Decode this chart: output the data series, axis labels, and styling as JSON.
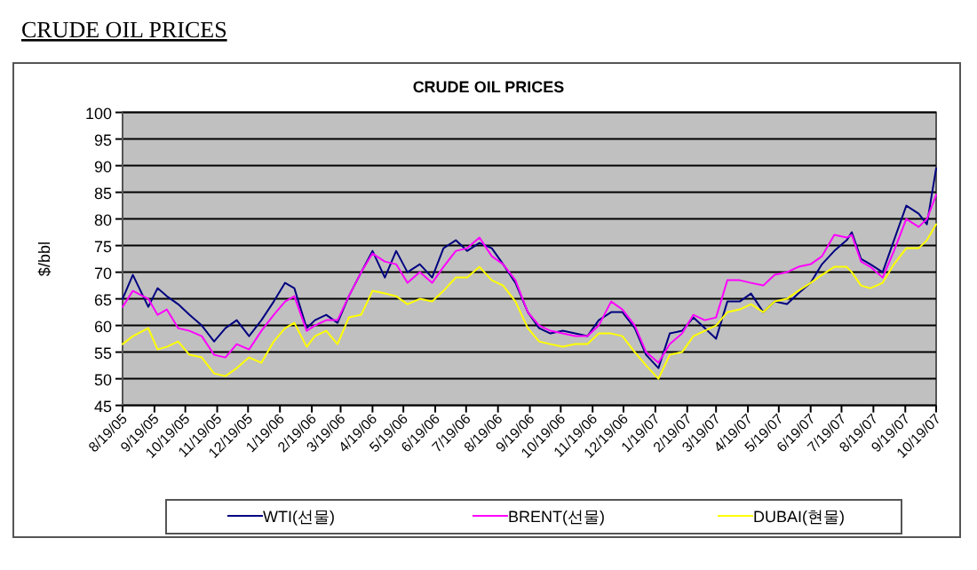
{
  "chart_data": {
    "type": "line",
    "title": "CRUDE OIL PRICES",
    "ylabel": "$/bbl",
    "annotations": [
      "CRUDE OIL PRICES"
    ],
    "x": [
      "2005-08-19",
      "2005-08-29",
      "2005-09-13",
      "2005-09-22",
      "2005-10-01",
      "2005-10-12",
      "2005-10-23",
      "2005-11-04",
      "2005-11-16",
      "2005-11-27",
      "2005-12-08",
      "2005-12-20",
      "2006-01-01",
      "2006-01-13",
      "2006-01-24",
      "2006-02-02",
      "2006-02-14",
      "2006-02-22",
      "2006-03-05",
      "2006-03-16",
      "2006-03-27",
      "2006-04-08",
      "2006-04-19",
      "2006-05-01",
      "2006-05-12",
      "2006-05-23",
      "2006-06-04",
      "2006-06-16",
      "2006-06-27",
      "2006-07-09",
      "2006-07-20",
      "2006-08-01",
      "2006-08-13",
      "2006-08-24",
      "2006-09-05",
      "2006-09-17",
      "2006-09-28",
      "2006-10-09",
      "2006-10-21",
      "2006-11-02",
      "2006-11-14",
      "2006-11-25",
      "2006-12-07",
      "2006-12-18",
      "2006-12-30",
      "2007-01-10",
      "2007-01-22",
      "2007-02-02",
      "2007-02-14",
      "2007-02-25",
      "2007-03-08",
      "2007-03-19",
      "2007-03-30",
      "2007-04-11",
      "2007-04-22",
      "2007-05-04",
      "2007-05-15",
      "2007-05-27",
      "2007-06-07",
      "2007-06-19",
      "2007-06-30",
      "2007-07-12",
      "2007-07-24",
      "2007-07-29",
      "2007-08-07",
      "2007-08-16",
      "2007-08-28",
      "2007-09-08",
      "2007-09-20",
      "2007-10-02",
      "2007-10-10",
      "2007-10-19"
    ],
    "series": [
      {
        "name": "WTI(선물)",
        "color": "#000080",
        "values": [
          65,
          69.5,
          63.5,
          67,
          65.5,
          64,
          62,
          60,
          57,
          59.5,
          61,
          58,
          61,
          64.5,
          68,
          67,
          59.5,
          61,
          62,
          60.5,
          65.5,
          70,
          74,
          69,
          74,
          70,
          71.5,
          69,
          74.5,
          76,
          74,
          75.5,
          74.5,
          71.5,
          68,
          62.5,
          59.5,
          58.5,
          59,
          58.5,
          58,
          61,
          62.5,
          62.5,
          59.5,
          54.5,
          52,
          58.5,
          59,
          61.5,
          59.5,
          57.5,
          64.5,
          64.5,
          66,
          62.5,
          64.5,
          64,
          66,
          68,
          71.5,
          74,
          76,
          77.5,
          72.5,
          71.5,
          70,
          76,
          82.5,
          81,
          79,
          89.5
        ]
      },
      {
        "name": "BRENT(선물)",
        "color": "#ff00ff",
        "values": [
          63.5,
          66.5,
          65,
          62,
          63,
          59.5,
          59,
          58,
          54.5,
          54,
          56.5,
          55.5,
          59,
          62,
          64.5,
          65.5,
          59,
          60,
          61,
          61,
          65.5,
          70,
          73.5,
          72,
          71.5,
          68,
          70,
          68,
          71,
          74,
          74.5,
          76.5,
          73,
          71.5,
          68.5,
          62.5,
          60,
          59,
          58.5,
          58,
          58,
          60,
          64.5,
          63,
          60,
          55,
          53,
          56.5,
          58.5,
          62,
          61,
          61.5,
          68.5,
          68.5,
          68,
          67.5,
          69.5,
          70,
          71,
          71.5,
          73,
          77,
          76.5,
          77,
          72,
          71,
          69,
          74,
          80,
          78.5,
          80,
          84.5
        ]
      },
      {
        "name": "DUBAI(현물)",
        "color": "#ffff00",
        "values": [
          56.5,
          58,
          59.5,
          55.5,
          56,
          57,
          54.5,
          54,
          51,
          50.5,
          52,
          54,
          53,
          57,
          59.5,
          60.5,
          56,
          58,
          59,
          56.5,
          61.5,
          62,
          66.5,
          66,
          65.5,
          64,
          65,
          64.5,
          66.5,
          69,
          69,
          71,
          68.5,
          67.5,
          64.5,
          59.5,
          57,
          56.5,
          56,
          56.5,
          56.5,
          58.5,
          58.5,
          58,
          55,
          52.5,
          50,
          54.5,
          55,
          58,
          59,
          60,
          62.5,
          63,
          64,
          62.5,
          64.5,
          65,
          66.5,
          68,
          69.5,
          71,
          71,
          70,
          67.5,
          67,
          68,
          71.5,
          74.5,
          74.5,
          76,
          79
        ]
      }
    ],
    "xlim": [
      "2005-08-19",
      "2007-10-19"
    ],
    "xticks": [
      {
        "value": "2005-08-19",
        "label": "8/19/05"
      },
      {
        "value": "2005-09-19",
        "label": "9/19/05"
      },
      {
        "value": "2005-10-19",
        "label": "10/19/05"
      },
      {
        "value": "2005-11-19",
        "label": "11/19/05"
      },
      {
        "value": "2005-12-19",
        "label": "12/19/05"
      },
      {
        "value": "2006-01-19",
        "label": "1/19/06"
      },
      {
        "value": "2006-02-19",
        "label": "2/19/06"
      },
      {
        "value": "2006-03-19",
        "label": "3/19/06"
      },
      {
        "value": "2006-04-19",
        "label": "4/19/06"
      },
      {
        "value": "2006-05-19",
        "label": "5/19/06"
      },
      {
        "value": "2006-06-19",
        "label": "6/19/06"
      },
      {
        "value": "2006-07-19",
        "label": "7/19/06"
      },
      {
        "value": "2006-08-19",
        "label": "8/19/06"
      },
      {
        "value": "2006-09-19",
        "label": "9/19/06"
      },
      {
        "value": "2006-10-19",
        "label": "10/19/06"
      },
      {
        "value": "2006-11-19",
        "label": "11/19/06"
      },
      {
        "value": "2006-12-19",
        "label": "12/19/06"
      },
      {
        "value": "2007-01-19",
        "label": "1/19/07"
      },
      {
        "value": "2007-02-19",
        "label": "2/19/07"
      },
      {
        "value": "2007-03-19",
        "label": "3/19/07"
      },
      {
        "value": "2007-04-19",
        "label": "4/19/07"
      },
      {
        "value": "2007-05-19",
        "label": "5/19/07"
      },
      {
        "value": "2007-06-19",
        "label": "6/19/07"
      },
      {
        "value": "2007-07-19",
        "label": "7/19/07"
      },
      {
        "value": "2007-08-19",
        "label": "8/19/07"
      },
      {
        "value": "2007-09-19",
        "label": "9/19/07"
      },
      {
        "value": "2007-10-19",
        "label": "10/19/07"
      }
    ],
    "ylim": [
      45,
      100
    ],
    "yticks": [
      45,
      50,
      55,
      60,
      65,
      70,
      75,
      80,
      85,
      90,
      95,
      100
    ],
    "grid": "y",
    "legend": "bottom"
  }
}
